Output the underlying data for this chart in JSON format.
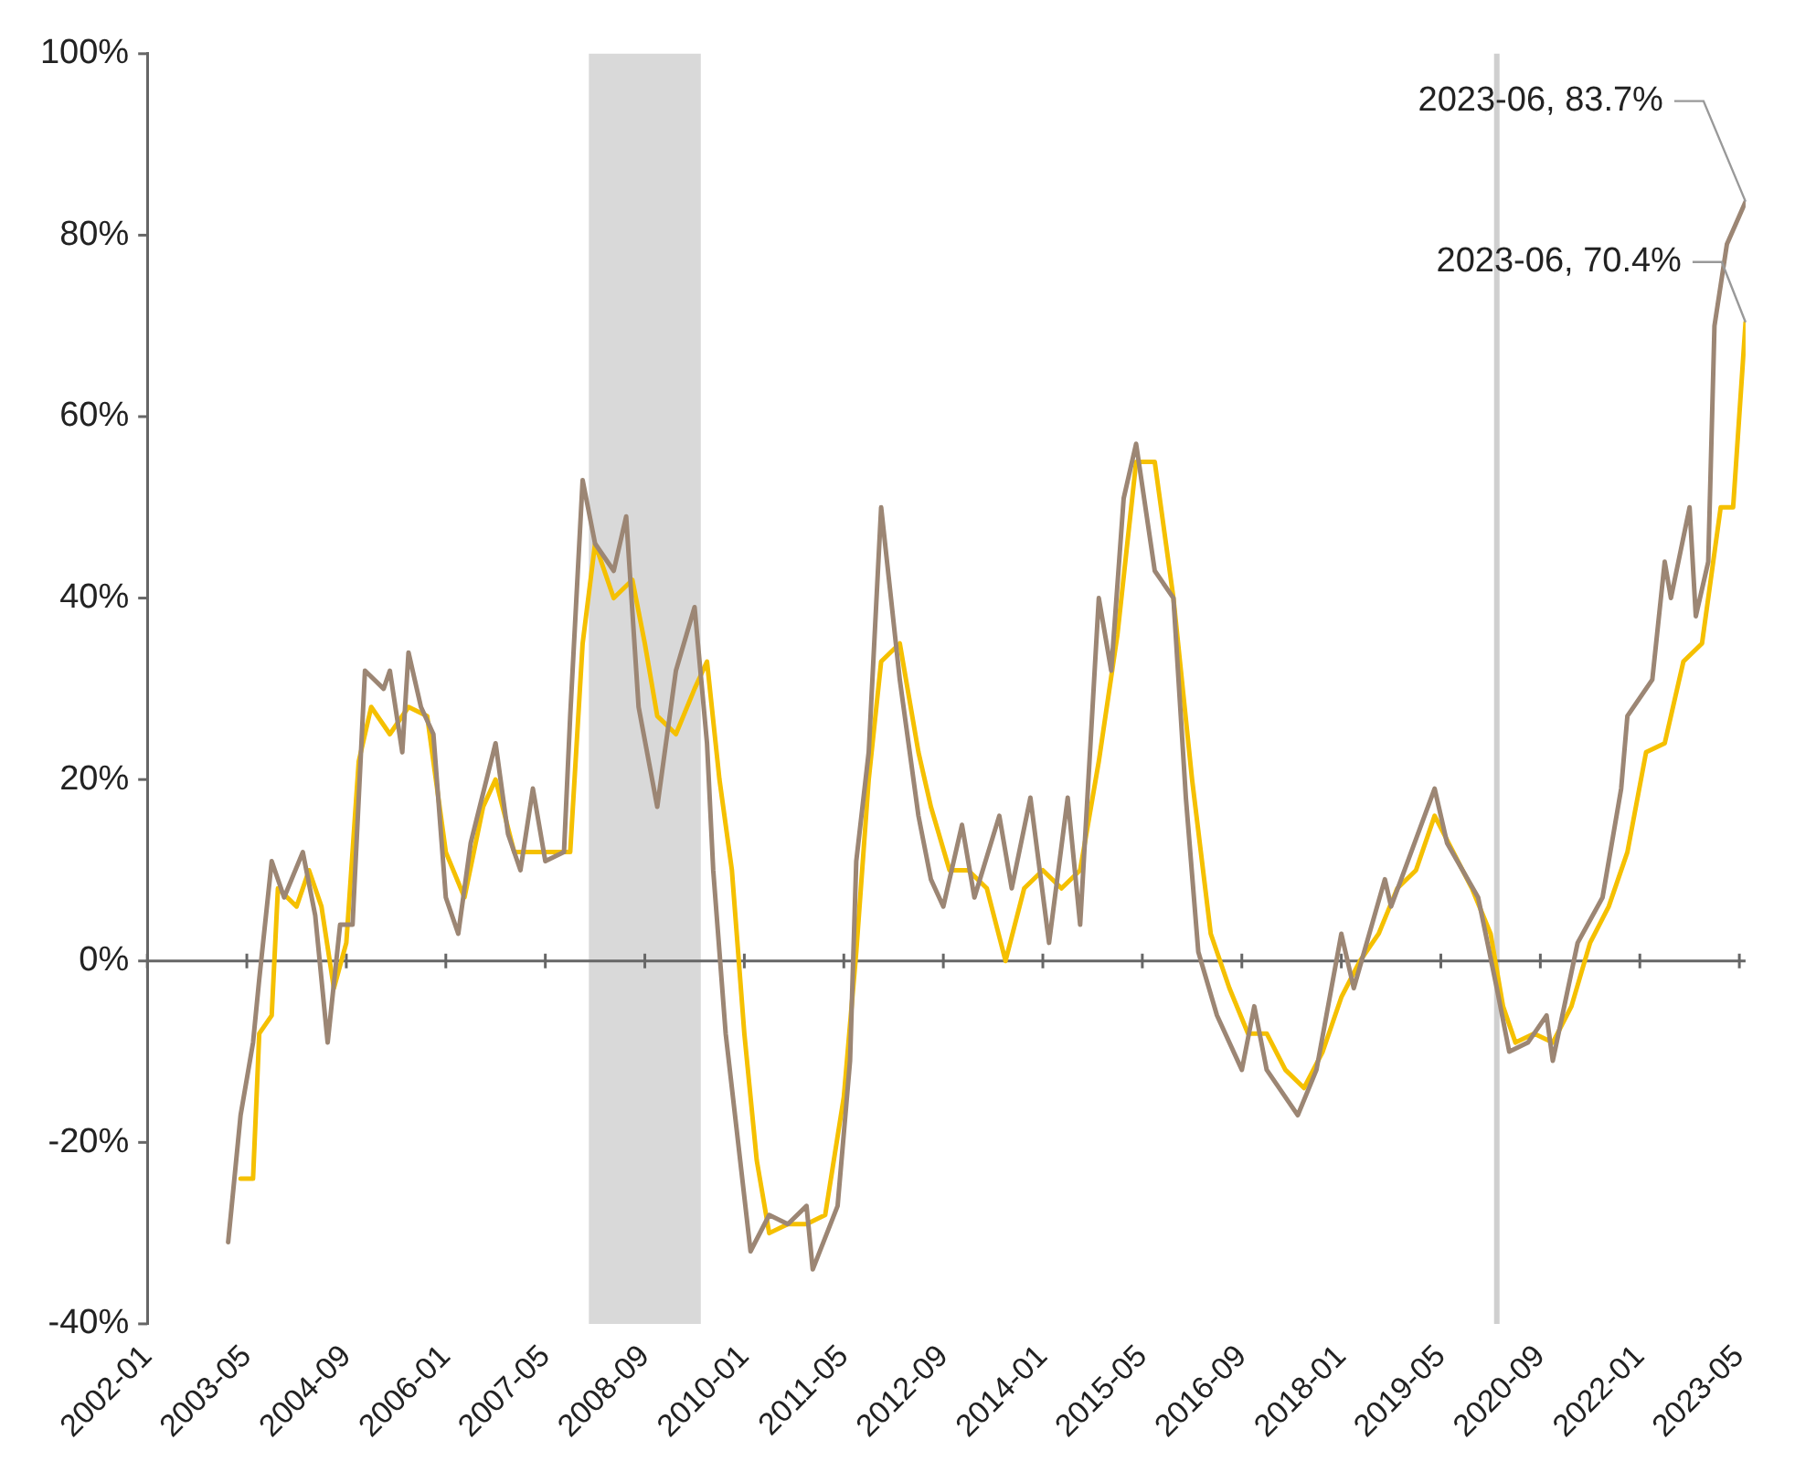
{
  "chart_data": {
    "type": "line",
    "xlim": [
      "2002-01",
      "2023-06"
    ],
    "xticks": [
      "2002-01",
      "2003-05",
      "2004-09",
      "2006-01",
      "2007-05",
      "2008-09",
      "2010-01",
      "2011-05",
      "2012-09",
      "2014-01",
      "2015-05",
      "2016-09",
      "2018-01",
      "2019-05",
      "2020-09",
      "2022-01",
      "2023-05"
    ],
    "ylim": [
      -40,
      100
    ],
    "yticks": [
      {
        "value": -40,
        "label": "-40%"
      },
      {
        "value": -20,
        "label": "-20%"
      },
      {
        "value": 0,
        "label": "0%"
      },
      {
        "value": 20,
        "label": "20%"
      },
      {
        "value": 40,
        "label": "40%"
      },
      {
        "value": 60,
        "label": "60%"
      },
      {
        "value": 80,
        "label": "80%"
      },
      {
        "value": 100,
        "label": "100%"
      }
    ],
    "grid": false,
    "legend": false,
    "marker": "none",
    "line_style": "solid",
    "bands": [
      {
        "axis": "x",
        "from": "2007-12",
        "to": "2009-06",
        "color": "#d9d9d9"
      }
    ],
    "ref_lines": [
      {
        "axis": "x",
        "value": "2020-02",
        "color": "#cfcfcf"
      },
      {
        "axis": "y",
        "value": 0,
        "color": "#666666"
      }
    ],
    "annotations": [
      {
        "text": "2023-06, 83.7%",
        "x": "2023-06",
        "y": 83.7
      },
      {
        "text": "2023-06, 70.4%",
        "x": "2023-06",
        "y": 70.4
      }
    ],
    "series": [
      {
        "color": "#9c8674",
        "x": [
          "2003-02",
          "2003-04",
          "2003-06",
          "2003-07",
          "2003-09",
          "2003-11",
          "2004-02",
          "2004-04",
          "2004-06",
          "2004-08",
          "2004-10",
          "2004-12",
          "2005-03",
          "2005-04",
          "2005-06",
          "2005-07",
          "2005-09",
          "2005-11",
          "2006-01",
          "2006-03",
          "2006-05",
          "2006-09",
          "2006-11",
          "2007-01",
          "2007-03",
          "2007-05",
          "2007-08",
          "2007-09",
          "2007-11",
          "2008-01",
          "2008-04",
          "2008-06",
          "2008-08",
          "2008-11",
          "2009-02",
          "2009-05",
          "2009-07",
          "2009-08",
          "2009-10",
          "2009-12",
          "2010-02",
          "2010-05",
          "2010-08",
          "2010-11",
          "2010-12",
          "2011-04",
          "2011-06",
          "2011-07",
          "2011-09",
          "2011-11",
          "2012-02",
          "2012-05",
          "2012-07",
          "2012-09",
          "2012-12",
          "2013-02",
          "2013-06",
          "2013-08",
          "2013-11",
          "2014-02",
          "2014-05",
          "2014-07",
          "2014-10",
          "2014-12",
          "2015-02",
          "2015-04",
          "2015-07",
          "2015-10",
          "2015-12",
          "2016-02",
          "2016-05",
          "2016-09",
          "2016-11",
          "2017-01",
          "2017-06",
          "2017-09",
          "2018-01",
          "2018-03",
          "2018-08",
          "2018-09",
          "2019-04",
          "2019-06",
          "2019-11",
          "2020-02",
          "2020-04",
          "2020-07",
          "2020-10",
          "2020-11",
          "2021-03",
          "2021-07",
          "2021-10",
          "2021-11",
          "2022-03",
          "2022-05",
          "2022-06",
          "2022-09",
          "2022-10",
          "2022-12",
          "2023-01",
          "2023-03",
          "2023-06"
        ],
        "values": [
          -31,
          -17,
          -9,
          -2,
          11,
          7,
          12,
          5,
          -9,
          4,
          4,
          32,
          30,
          32,
          23,
          34,
          28,
          25,
          7,
          3,
          13,
          24,
          14,
          10,
          19,
          11,
          12,
          27,
          53,
          46,
          43,
          49,
          28,
          17,
          32,
          39,
          24,
          10,
          -8,
          -20,
          -32,
          -28,
          -29,
          -27,
          -34,
          -27,
          -11,
          11,
          23,
          50,
          31,
          16,
          9,
          6,
          15,
          7,
          16,
          8,
          18,
          2,
          18,
          4,
          40,
          32,
          51,
          57,
          43,
          40,
          18,
          1,
          -6,
          -12,
          -5,
          -12,
          -17,
          -12,
          3,
          -3,
          9,
          6,
          19,
          13,
          7,
          -3,
          -10,
          -9,
          -6,
          -11,
          2,
          7,
          19,
          27,
          31,
          44,
          40,
          50,
          38,
          44,
          70,
          79,
          83.7
        ]
      },
      {
        "color": "#f5c000",
        "x": [
          "2003-04",
          "2003-06",
          "2003-07",
          "2003-09",
          "2003-10",
          "2004-01",
          "2004-03",
          "2004-05",
          "2004-07",
          "2004-09",
          "2004-11",
          "2005-01",
          "2005-04",
          "2005-07",
          "2005-10",
          "2006-01",
          "2006-04",
          "2006-07",
          "2006-09",
          "2006-12",
          "2007-03",
          "2007-06",
          "2007-09",
          "2007-11",
          "2008-01",
          "2008-04",
          "2008-07",
          "2008-09",
          "2008-11",
          "2009-02",
          "2009-05",
          "2009-07",
          "2009-09",
          "2009-11",
          "2010-01",
          "2010-03",
          "2010-05",
          "2010-08",
          "2010-11",
          "2011-02",
          "2011-05",
          "2011-07",
          "2011-09",
          "2011-11",
          "2012-02",
          "2012-05",
          "2012-07",
          "2012-10",
          "2013-01",
          "2013-04",
          "2013-07",
          "2013-10",
          "2014-01",
          "2014-04",
          "2014-07",
          "2014-10",
          "2015-01",
          "2015-04",
          "2015-07",
          "2015-10",
          "2016-01",
          "2016-04",
          "2016-07",
          "2016-10",
          "2017-01",
          "2017-04",
          "2017-07",
          "2017-10",
          "2018-01",
          "2018-04",
          "2018-07",
          "2018-10",
          "2019-01",
          "2019-04",
          "2019-07",
          "2019-10",
          "2020-01",
          "2020-03",
          "2020-05",
          "2020-08",
          "2020-11",
          "2021-02",
          "2021-05",
          "2021-08",
          "2021-11",
          "2022-02",
          "2022-05",
          "2022-08",
          "2022-11",
          "2023-02",
          "2023-04",
          "2023-06"
        ],
        "values": [
          -24,
          -24,
          -8,
          -6,
          8,
          6,
          10,
          6,
          -3,
          2,
          22,
          28,
          25,
          28,
          27,
          12,
          7,
          17,
          20,
          12,
          12,
          12,
          12,
          35,
          46,
          40,
          42,
          35,
          27,
          25,
          30,
          33,
          20,
          10,
          -8,
          -22,
          -30,
          -29,
          -29,
          -28,
          -15,
          1,
          20,
          33,
          35,
          23,
          17,
          10,
          10,
          8,
          0,
          8,
          10,
          8,
          10,
          22,
          36,
          55,
          55,
          40,
          20,
          3,
          -3,
          -8,
          -8,
          -12,
          -14,
          -10,
          -4,
          0,
          3,
          8,
          10,
          16,
          12,
          8,
          3,
          -5,
          -9,
          -8,
          -9,
          -5,
          2,
          6,
          12,
          23,
          24,
          33,
          35,
          50,
          50,
          70.4
        ]
      }
    ]
  }
}
